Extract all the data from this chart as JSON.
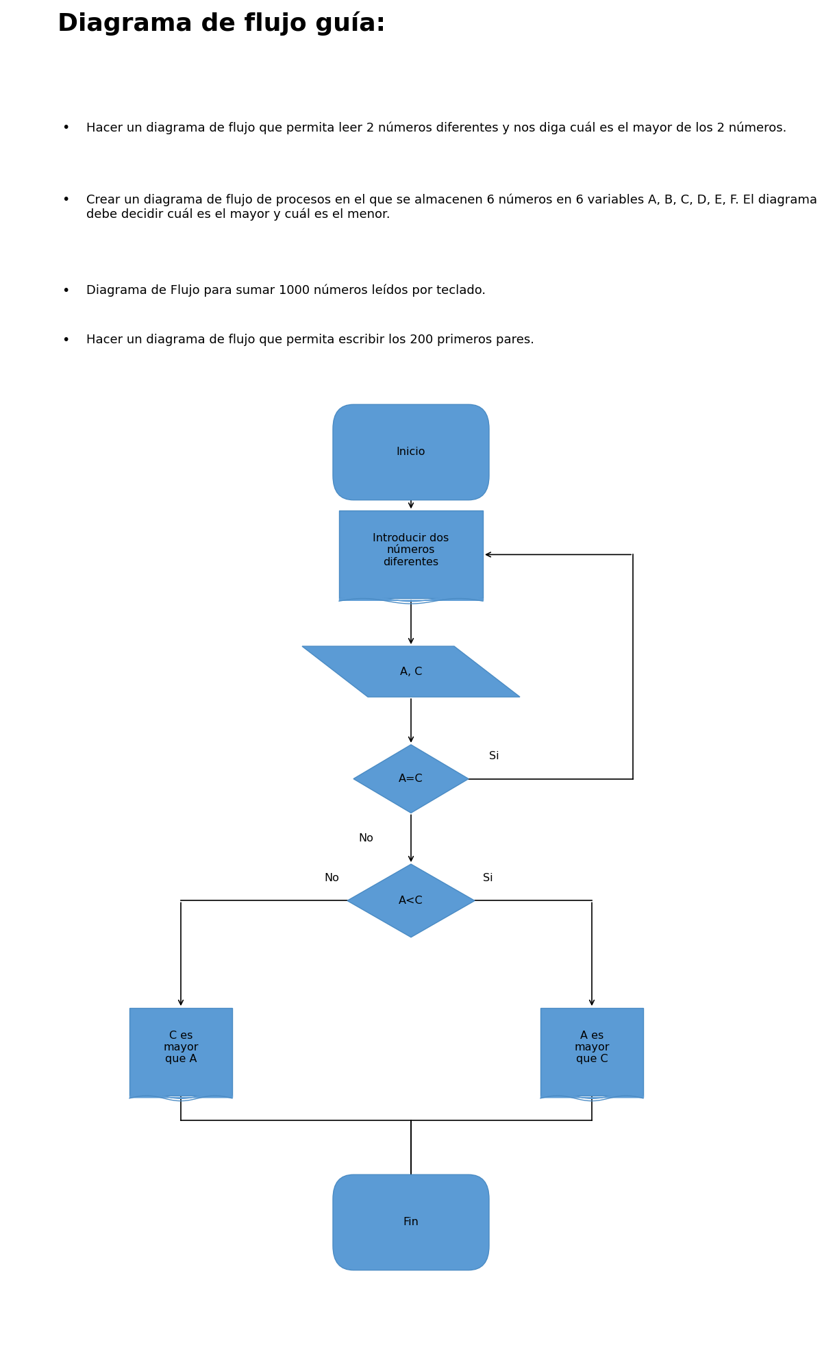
{
  "title": "Diagrama de flujo guía:",
  "title_fontsize": 26,
  "title_fontweight": "bold",
  "bullet_points": [
    "Hacer un diagrama de flujo que permita leer 2 números diferentes y nos diga cuál es el mayor de los 2 números.",
    "Crear un diagrama de flujo de procesos en el que se almacenen 6 números en 6 variables A, B, C, D, E, F. El diagrama debe decidir cuál es el mayor y cuál es el menor.",
    "Diagrama de Flujo para sumar 1000 números leídos por teclado.",
    "Hacer un diagrama de flujo que permita escribir los 200 primeros pares."
  ],
  "bullet_fontsize": 13,
  "bg_color": "#ffffff",
  "shape_color": "#5b9bd5",
  "shape_edge_color": "#4a8bc4",
  "text_color": "#000000",
  "arrow_color": "#000000"
}
